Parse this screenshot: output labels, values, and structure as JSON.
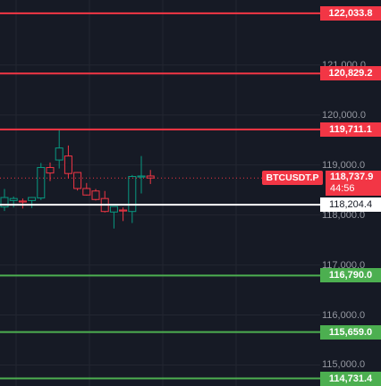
{
  "chart_data": {
    "type": "candlestick",
    "symbol": "BTCUSDT.P",
    "last_price": "118,737.9",
    "countdown": "44:56",
    "price_axis_ticks": [
      "121,000.0",
      "120,000.0",
      "119,000.0",
      "118,000.0",
      "117,000.0",
      "116,000.0",
      "115,000.0"
    ],
    "price_axis_ticks_values": [
      121000,
      120000,
      119000,
      118000,
      117000,
      116000,
      115000
    ],
    "y_range": [
      114580,
      122300
    ],
    "levels": [
      {
        "value": 122033.8,
        "label": "122,033.8",
        "kind": "resistance"
      },
      {
        "value": 120829.2,
        "label": "120,829.2",
        "kind": "resistance"
      },
      {
        "value": 119711.1,
        "label": "119,711.1",
        "kind": "resistance"
      },
      {
        "value": 118204.4,
        "label": "118,204.4",
        "kind": "pivot"
      },
      {
        "value": 116790.0,
        "label": "116,790.0",
        "kind": "support"
      },
      {
        "value": 115659.0,
        "label": "115,659.0",
        "kind": "support"
      },
      {
        "value": 114731.4,
        "label": "114,731.4",
        "kind": "support"
      }
    ],
    "candles": [
      {
        "o": 118160,
        "h": 118520,
        "l": 118080,
        "c": 118350
      },
      {
        "o": 118290,
        "h": 118370,
        "l": 118150,
        "c": 118330
      },
      {
        "o": 118280,
        "h": 118330,
        "l": 118130,
        "c": 118260
      },
      {
        "o": 118290,
        "h": 118360,
        "l": 118140,
        "c": 118350
      },
      {
        "o": 118340,
        "h": 119040,
        "l": 118300,
        "c": 118950
      },
      {
        "o": 118950,
        "h": 119050,
        "l": 118680,
        "c": 118840
      },
      {
        "o": 119100,
        "h": 119710,
        "l": 118930,
        "c": 119340
      },
      {
        "o": 119180,
        "h": 119390,
        "l": 118730,
        "c": 118830
      },
      {
        "o": 118850,
        "h": 118860,
        "l": 118490,
        "c": 118530
      },
      {
        "o": 118530,
        "h": 118640,
        "l": 118390,
        "c": 118400
      },
      {
        "o": 118480,
        "h": 118520,
        "l": 118290,
        "c": 118310
      },
      {
        "o": 118330,
        "h": 118480,
        "l": 118050,
        "c": 118070
      },
      {
        "o": 118060,
        "h": 118100,
        "l": 117730,
        "c": 118170
      },
      {
        "o": 118100,
        "h": 118150,
        "l": 117880,
        "c": 118080
      },
      {
        "o": 118070,
        "h": 118800,
        "l": 117840,
        "c": 118770
      },
      {
        "o": 118760,
        "h": 119180,
        "l": 118430,
        "c": 118780
      },
      {
        "o": 118780,
        "h": 118900,
        "l": 118620,
        "c": 118740
      }
    ]
  },
  "colors": {
    "background": "#161a25",
    "grid": "#232631",
    "up": "#089981",
    "down": "#f23645",
    "resistance": "#f23645",
    "support": "#4caf50",
    "pivot": "#ffffff",
    "axis_text": "#9598a1"
  }
}
